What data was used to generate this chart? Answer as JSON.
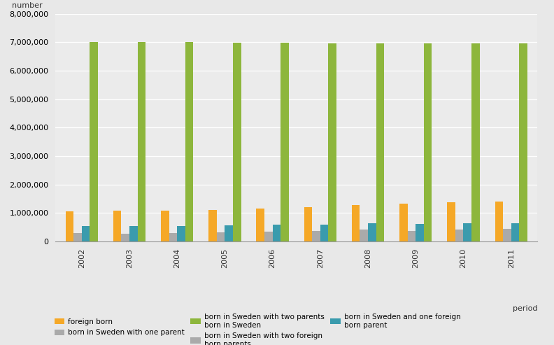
{
  "years": [
    2002,
    2003,
    2004,
    2005,
    2006,
    2007,
    2008,
    2009,
    2010,
    2011
  ],
  "series": {
    "foreign_born": [
      1050000,
      1080000,
      1080000,
      1110000,
      1160000,
      1210000,
      1270000,
      1330000,
      1370000,
      1400000
    ],
    "born_sweden_one_parent": [
      290000,
      280000,
      290000,
      310000,
      350000,
      360000,
      420000,
      370000,
      430000,
      450000
    ],
    "born_sweden_one_foreign_parent": [
      540000,
      540000,
      550000,
      560000,
      590000,
      600000,
      630000,
      610000,
      640000,
      650000
    ],
    "born_sweden_two_parents": [
      7020000,
      7020000,
      7010000,
      6990000,
      6990000,
      6970000,
      6960000,
      6960000,
      6960000,
      6960000
    ]
  },
  "colors": {
    "foreign_born": "#F5A827",
    "born_sweden_one_parent": "#AAAAAA",
    "born_sweden_one_foreign_parent": "#3A9BAD",
    "born_sweden_two_parents": "#8DB63C"
  },
  "ylabel": "number",
  "xlabel": "period",
  "ylim": [
    0,
    8000000
  ],
  "yticks": [
    0,
    1000000,
    2000000,
    3000000,
    4000000,
    5000000,
    6000000,
    7000000,
    8000000
  ],
  "bg_color": "#E8E8E8",
  "plot_bg_color": "#EBEBEB",
  "bar_width": 0.17,
  "legend": [
    {
      "color": "#F5A827",
      "label": "foreign born",
      "col": 0,
      "row": 0
    },
    {
      "color": "#AAAAAA",
      "label": "born in Sweden with one parent",
      "col": 1,
      "row": 0
    },
    {
      "color": "#8DB63C",
      "label": "born in Sweden with two parents\nborn in Sweden",
      "col": 2,
      "row": 0
    },
    {
      "color": "#AAAAAA",
      "label": "born in Sweden with two foreign\nborn parents",
      "col": 0,
      "row": 1
    },
    {
      "color": "#3A9BAD",
      "label": "born in Sweden and one foreign\nborn parent",
      "col": 1,
      "row": 1
    }
  ]
}
